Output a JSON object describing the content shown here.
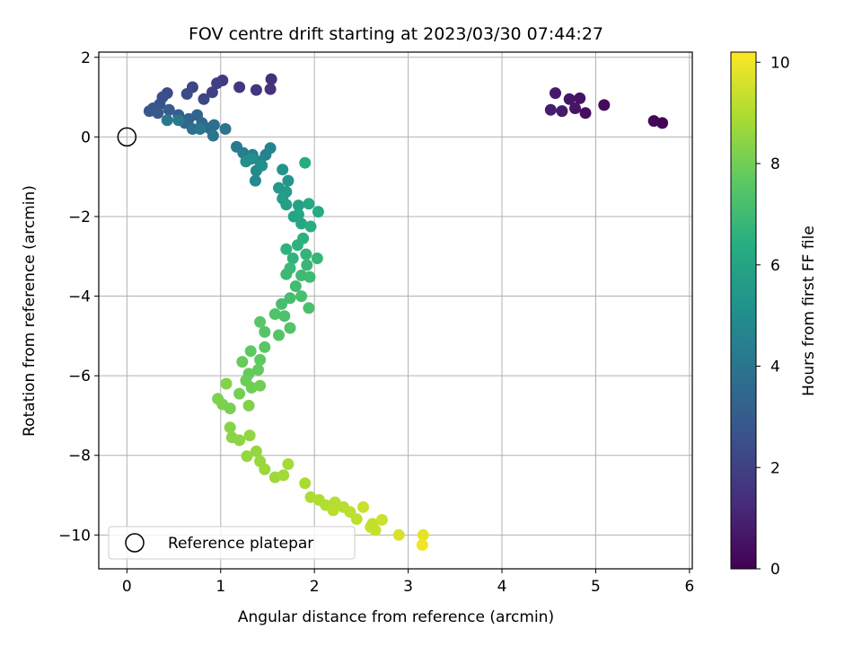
{
  "chart_data": {
    "type": "scatter",
    "title": "FOV centre drift starting at 2023/03/30 07:44:27",
    "xlabel": "Angular distance from reference (arcmin)",
    "ylabel": "Rotation from reference (arcmin)",
    "xlim": [
      -0.3,
      6.03
    ],
    "ylim": [
      -10.85,
      2.13
    ],
    "xticks": [
      0,
      1,
      2,
      3,
      4,
      5,
      6
    ],
    "yticks": [
      2,
      0,
      -2,
      -4,
      -6,
      -8,
      -10
    ],
    "xtick_labels": [
      "0",
      "1",
      "2",
      "3",
      "4",
      "5",
      "6"
    ],
    "ytick_labels": [
      "2",
      "0",
      "−2",
      "−4",
      "−6",
      "−8",
      "−10"
    ],
    "grid": true,
    "colormap": "viridis",
    "colorbar": {
      "label": "Hours from first FF file",
      "range": [
        0,
        10.2
      ],
      "ticks": [
        0,
        2,
        4,
        6,
        8,
        10
      ],
      "tick_labels": [
        "0",
        "2",
        "4",
        "6",
        "8",
        "10"
      ]
    },
    "reference_point": {
      "x": 0,
      "y": 0
    },
    "legend": {
      "position": "lower-left",
      "entries": [
        "Reference platepar"
      ]
    },
    "points": [
      [
        5.71,
        0.35,
        0.1
      ],
      [
        5.62,
        0.4,
        0.2
      ],
      [
        5.09,
        0.8,
        0.3
      ],
      [
        4.89,
        0.6,
        0.4
      ],
      [
        4.83,
        0.97,
        0.5
      ],
      [
        4.78,
        0.72,
        0.55
      ],
      [
        4.72,
        0.95,
        0.6
      ],
      [
        4.64,
        0.65,
        0.7
      ],
      [
        4.57,
        1.1,
        0.75
      ],
      [
        4.52,
        0.68,
        0.8
      ],
      [
        1.54,
        1.45,
        1.4
      ],
      [
        1.53,
        1.2,
        1.5
      ],
      [
        1.38,
        1.18,
        1.6
      ],
      [
        1.2,
        1.25,
        1.7
      ],
      [
        1.02,
        1.42,
        1.8
      ],
      [
        0.96,
        1.35,
        1.9
      ],
      [
        0.91,
        1.12,
        2.0
      ],
      [
        0.82,
        0.95,
        2.1
      ],
      [
        0.7,
        1.25,
        2.2
      ],
      [
        0.64,
        1.08,
        2.3
      ],
      [
        0.43,
        1.1,
        2.4
      ],
      [
        0.38,
        1.0,
        2.5
      ],
      [
        0.35,
        0.82,
        2.6
      ],
      [
        0.28,
        0.72,
        2.7
      ],
      [
        0.24,
        0.65,
        2.8
      ],
      [
        0.33,
        0.6,
        2.9
      ],
      [
        0.45,
        0.68,
        3.0
      ],
      [
        0.55,
        0.55,
        3.1
      ],
      [
        0.66,
        0.45,
        3.2
      ],
      [
        0.75,
        0.55,
        3.3
      ],
      [
        0.62,
        0.35,
        3.4
      ],
      [
        0.8,
        0.35,
        3.5
      ],
      [
        0.88,
        0.22,
        3.6
      ],
      [
        0.93,
        0.3,
        3.7
      ],
      [
        0.7,
        0.2,
        3.8
      ],
      [
        1.05,
        0.2,
        3.9
      ],
      [
        0.92,
        0.03,
        4.0
      ],
      [
        0.78,
        0.2,
        4.05
      ],
      [
        0.43,
        0.42,
        4.1
      ],
      [
        0.55,
        0.42,
        4.15
      ],
      [
        1.17,
        -0.25,
        4.2
      ],
      [
        1.24,
        -0.4,
        4.3
      ],
      [
        1.34,
        -0.45,
        4.4
      ],
      [
        1.48,
        -0.45,
        4.5
      ],
      [
        1.53,
        -0.28,
        4.6
      ],
      [
        1.42,
        -0.62,
        4.7
      ],
      [
        1.38,
        -0.85,
        4.8
      ],
      [
        1.37,
        -1.1,
        4.9
      ],
      [
        1.33,
        -0.55,
        5.0
      ],
      [
        1.27,
        -0.62,
        5.1
      ],
      [
        1.44,
        -0.72,
        5.15
      ],
      [
        1.66,
        -0.82,
        5.3
      ],
      [
        1.72,
        -1.1,
        5.4
      ],
      [
        1.62,
        -1.28,
        5.5
      ],
      [
        1.7,
        -1.38,
        5.6
      ],
      [
        1.66,
        -1.55,
        5.7
      ],
      [
        1.7,
        -1.7,
        5.8
      ],
      [
        1.83,
        -1.72,
        5.9
      ],
      [
        1.78,
        -2.0,
        6.0
      ],
      [
        1.86,
        -2.18,
        6.1
      ],
      [
        1.94,
        -1.68,
        6.2
      ],
      [
        2.04,
        -1.88,
        6.3
      ],
      [
        1.9,
        -0.65,
        6.35
      ],
      [
        1.96,
        -2.25,
        6.4
      ],
      [
        1.88,
        -2.55,
        6.5
      ],
      [
        1.82,
        -2.72,
        6.55
      ],
      [
        1.7,
        -2.82,
        6.6
      ],
      [
        1.77,
        -3.05,
        6.65
      ],
      [
        1.91,
        -2.95,
        6.7
      ],
      [
        2.03,
        -3.05,
        6.75
      ],
      [
        1.92,
        -3.22,
        6.8
      ],
      [
        1.74,
        -3.3,
        6.85
      ],
      [
        1.7,
        -3.45,
        6.9
      ],
      [
        1.86,
        -3.48,
        6.95
      ],
      [
        1.95,
        -3.52,
        7.0
      ],
      [
        1.8,
        -3.75,
        7.05
      ],
      [
        1.74,
        -4.05,
        7.1
      ],
      [
        1.65,
        -4.2,
        7.15
      ],
      [
        1.86,
        -4.0,
        7.2
      ],
      [
        1.94,
        -4.3,
        7.25
      ],
      [
        1.68,
        -4.5,
        7.3
      ],
      [
        1.58,
        -4.45,
        7.35
      ],
      [
        1.74,
        -4.8,
        7.4
      ],
      [
        1.62,
        -4.98,
        7.45
      ],
      [
        1.47,
        -4.9,
        7.5
      ],
      [
        1.42,
        -4.65,
        7.55
      ],
      [
        1.47,
        -5.28,
        7.6
      ],
      [
        1.32,
        -5.38,
        7.65
      ],
      [
        1.42,
        -5.6,
        7.7
      ],
      [
        1.4,
        -5.85,
        7.75
      ],
      [
        1.3,
        -5.95,
        7.8
      ],
      [
        1.23,
        -5.65,
        7.85
      ],
      [
        1.27,
        -6.12,
        7.9
      ],
      [
        1.33,
        -6.3,
        7.95
      ],
      [
        1.42,
        -6.25,
        8.0
      ],
      [
        1.2,
        -6.45,
        8.05
      ],
      [
        1.1,
        -6.82,
        8.1
      ],
      [
        1.02,
        -6.72,
        8.15
      ],
      [
        0.97,
        -6.58,
        8.2
      ],
      [
        1.3,
        -6.75,
        8.25
      ],
      [
        1.06,
        -6.2,
        8.3
      ],
      [
        1.1,
        -7.3,
        8.35
      ],
      [
        1.12,
        -7.55,
        8.4
      ],
      [
        1.2,
        -7.62,
        8.45
      ],
      [
        1.31,
        -7.5,
        8.5
      ],
      [
        1.38,
        -7.9,
        8.55
      ],
      [
        1.28,
        -8.02,
        8.6
      ],
      [
        1.42,
        -8.15,
        8.65
      ],
      [
        1.47,
        -8.35,
        8.7
      ],
      [
        1.58,
        -8.55,
        8.75
      ],
      [
        1.67,
        -8.5,
        8.8
      ],
      [
        1.72,
        -8.22,
        8.85
      ],
      [
        1.9,
        -8.7,
        8.9
      ],
      [
        1.96,
        -9.05,
        8.95
      ],
      [
        2.05,
        -9.12,
        9.0
      ],
      [
        2.12,
        -9.25,
        9.05
      ],
      [
        2.22,
        -9.18,
        9.1
      ],
      [
        2.31,
        -9.3,
        9.15
      ],
      [
        2.38,
        -9.42,
        9.2
      ],
      [
        2.45,
        -9.6,
        9.25
      ],
      [
        2.62,
        -9.72,
        9.3
      ],
      [
        2.65,
        -9.88,
        9.35
      ],
      [
        2.72,
        -9.62,
        9.45
      ],
      [
        2.9,
        -10.0,
        9.6
      ],
      [
        3.16,
        -10.0,
        9.8
      ],
      [
        3.15,
        -10.25,
        10.0
      ],
      [
        2.52,
        -9.3,
        9.4
      ],
      [
        1.83,
        -1.95,
        6.05
      ],
      [
        2.2,
        -9.38,
        9.12
      ],
      [
        2.6,
        -9.8,
        9.32
      ]
    ]
  }
}
